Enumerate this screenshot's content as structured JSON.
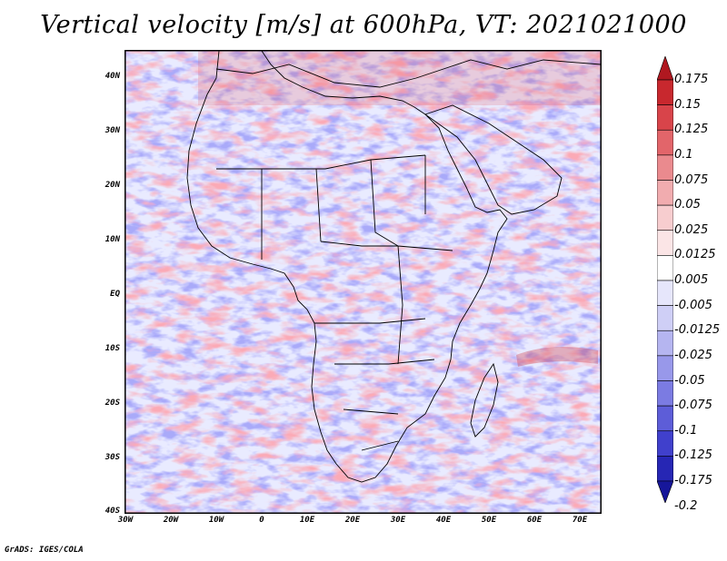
{
  "title": "Vertical velocity [m/s] at 600hPa, VT: 2021021000",
  "credit": "GrADS: IGES/COLA",
  "map": {
    "lat_ticks": [
      "40N",
      "30N",
      "20N",
      "10N",
      "EQ",
      "10S",
      "20S",
      "30S",
      "40S"
    ],
    "lon_ticks": [
      "30W",
      "20W",
      "10W",
      "0",
      "10E",
      "20E",
      "30E",
      "40E",
      "50E",
      "60E",
      "70E"
    ],
    "lat_range": [
      -40,
      45
    ],
    "lon_range": [
      -30,
      75
    ],
    "region": "Africa"
  },
  "colorbar": {
    "labels": [
      "0.175",
      "0.15",
      "0.125",
      "0.1",
      "0.075",
      "0.05",
      "0.025",
      "0.0125",
      "0.005",
      "-0.005",
      "-0.0125",
      "-0.025",
      "-0.05",
      "-0.075",
      "-0.1",
      "-0.125",
      "-0.175",
      "-0.2"
    ],
    "colors": [
      "#b01820",
      "#c8282e",
      "#d8444a",
      "#e2656a",
      "#ea8a8e",
      "#f1acaf",
      "#f7cdcf",
      "#fbe5e6",
      "#ffffff",
      "#e6e6fb",
      "#cfcff6",
      "#b5b5f0",
      "#9898ea",
      "#7b7be2",
      "#5d5dd8",
      "#4040cc",
      "#2626b4",
      "#16169a"
    ]
  }
}
